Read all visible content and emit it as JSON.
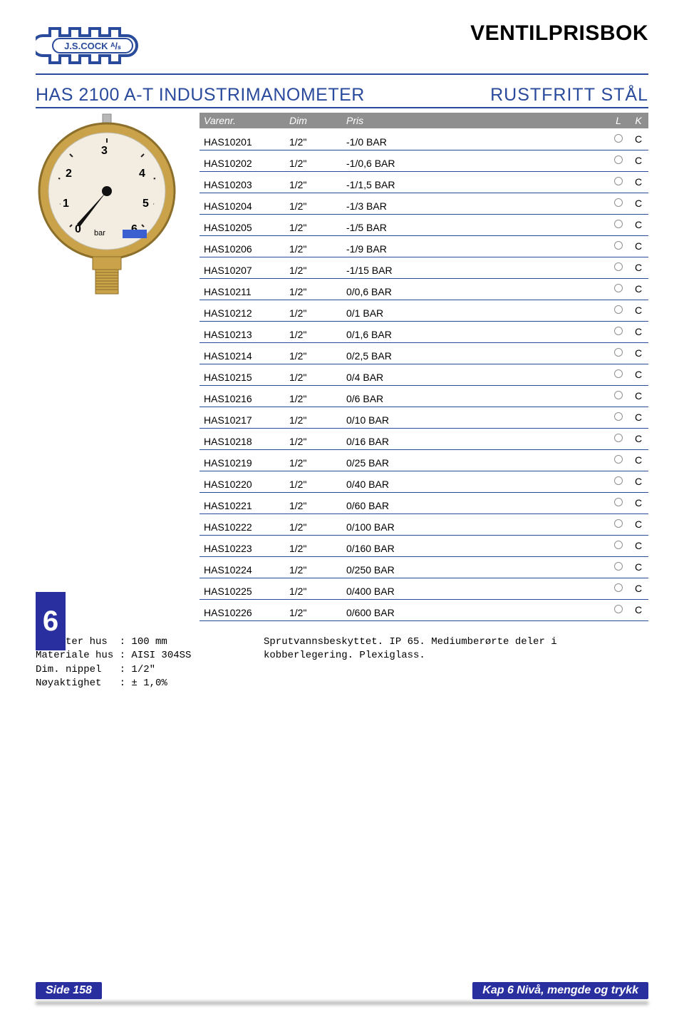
{
  "brand": {
    "title": "VENTILPRISBOK"
  },
  "section": {
    "left": "HAS 2100 A-T INDUSTRIMANOMETER",
    "right": "RUSTFRITT STÅL"
  },
  "side_tab": "6",
  "table": {
    "header": {
      "varenr": "Varenr.",
      "dim": "Dim",
      "pris": "Pris",
      "l": "L",
      "k": "K"
    },
    "rows": [
      {
        "v": "HAS10201",
        "d": "1/2\"",
        "p": "-1/0 BAR",
        "k": "C"
      },
      {
        "v": "HAS10202",
        "d": "1/2\"",
        "p": "-1/0,6 BAR",
        "k": "C"
      },
      {
        "v": "HAS10203",
        "d": "1/2\"",
        "p": "-1/1,5 BAR",
        "k": "C"
      },
      {
        "v": "HAS10204",
        "d": "1/2\"",
        "p": "-1/3 BAR",
        "k": "C"
      },
      {
        "v": "HAS10205",
        "d": "1/2\"",
        "p": "-1/5 BAR",
        "k": "C"
      },
      {
        "v": "HAS10206",
        "d": "1/2\"",
        "p": "-1/9 BAR",
        "k": "C"
      },
      {
        "v": "HAS10207",
        "d": "1/2\"",
        "p": "-1/15 BAR",
        "k": "C"
      },
      {
        "v": "HAS10211",
        "d": "1/2\"",
        "p": "0/0,6 BAR",
        "k": "C"
      },
      {
        "v": "HAS10212",
        "d": "1/2\"",
        "p": "0/1 BAR",
        "k": "C"
      },
      {
        "v": "HAS10213",
        "d": "1/2\"",
        "p": "0/1,6 BAR",
        "k": "C"
      },
      {
        "v": "HAS10214",
        "d": "1/2\"",
        "p": "0/2,5 BAR",
        "k": "C"
      },
      {
        "v": "HAS10215",
        "d": "1/2\"",
        "p": "0/4 BAR",
        "k": "C"
      },
      {
        "v": "HAS10216",
        "d": "1/2\"",
        "p": "0/6 BAR",
        "k": "C"
      },
      {
        "v": "HAS10217",
        "d": "1/2\"",
        "p": "0/10 BAR",
        "k": "C"
      },
      {
        "v": "HAS10218",
        "d": "1/2\"",
        "p": "0/16 BAR",
        "k": "C"
      },
      {
        "v": "HAS10219",
        "d": "1/2\"",
        "p": "0/25 BAR",
        "k": "C"
      },
      {
        "v": "HAS10220",
        "d": "1/2\"",
        "p": "0/40 BAR",
        "k": "C"
      },
      {
        "v": "HAS10221",
        "d": "1/2\"",
        "p": "0/60 BAR",
        "k": "C"
      },
      {
        "v": "HAS10222",
        "d": "1/2\"",
        "p": "0/100 BAR",
        "k": "C"
      },
      {
        "v": "HAS10223",
        "d": "1/2\"",
        "p": "0/160 BAR",
        "k": "C"
      },
      {
        "v": "HAS10224",
        "d": "1/2\"",
        "p": "0/250 BAR",
        "k": "C"
      },
      {
        "v": "HAS10225",
        "d": "1/2\"",
        "p": "0/400 BAR",
        "k": "C"
      },
      {
        "v": "HAS10226",
        "d": "1/2\"",
        "p": "0/600 BAR",
        "k": "C"
      }
    ]
  },
  "specs": {
    "lines": [
      "Diameter hus  : 100 mm",
      "Materiale hus : AISI 304SS",
      "Dim. nippel   : 1/2\"",
      "Nøyaktighet   : ± 1,0%"
    ]
  },
  "description": "Sprutvannsbeskyttet. IP 65. Mediumberørte deler i kobberlegering. Plexiglass.",
  "footer": {
    "left": "Side 158",
    "right": "Kap 6 Nivå, mengde og trykk"
  },
  "colors": {
    "rule": "#2a4a9c",
    "header_bg": "#8f8f8f",
    "accent": "#2a2fa0"
  }
}
